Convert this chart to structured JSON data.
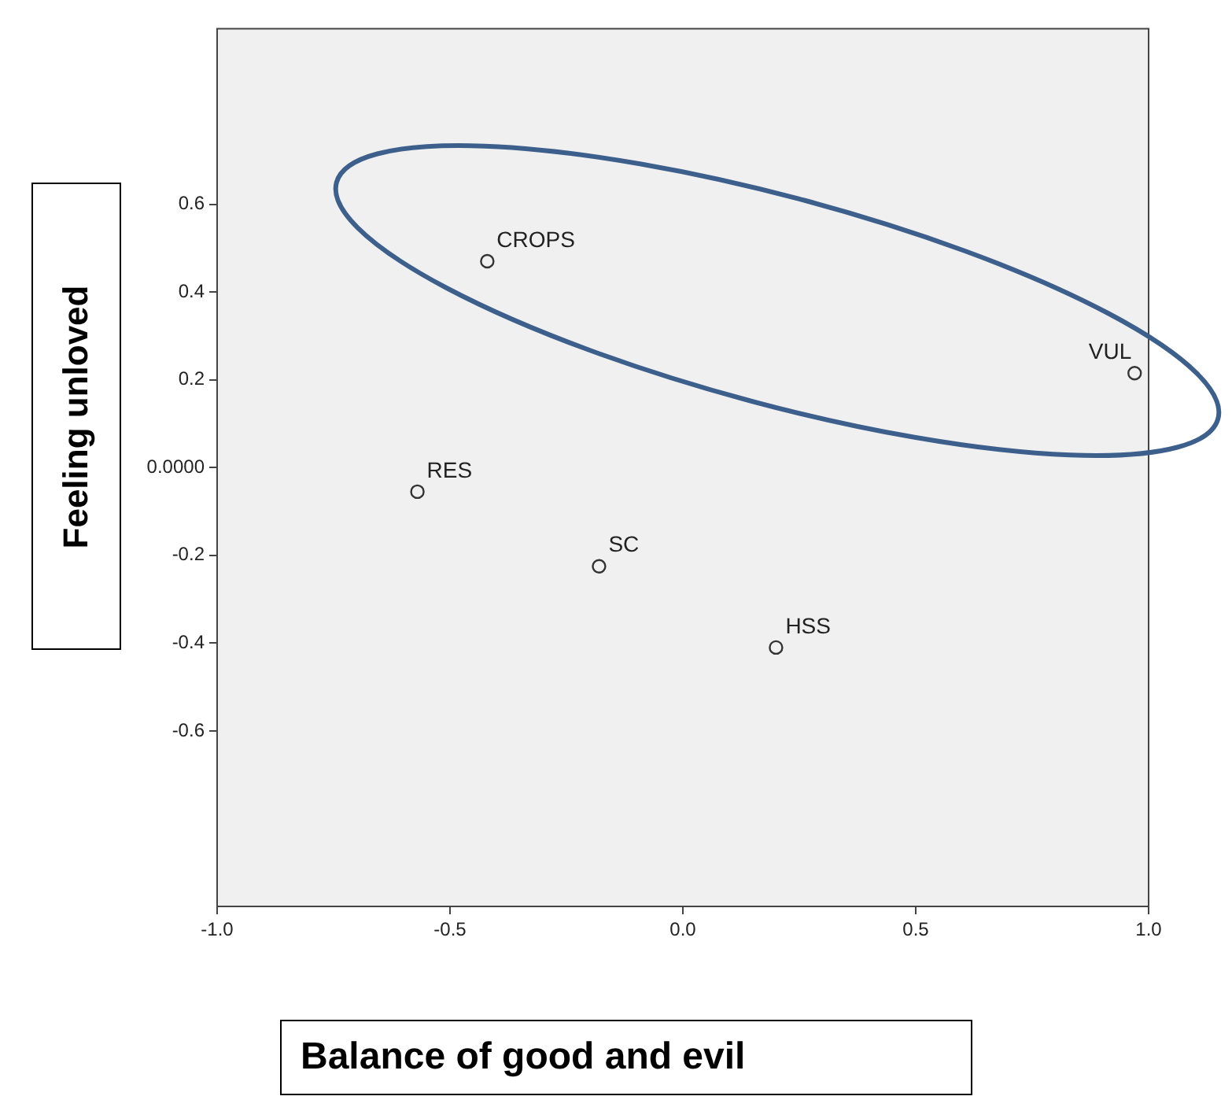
{
  "chart_data": {
    "type": "scatter",
    "xlabel": "Balance of good and evil",
    "ylabel": "Feeling unloved",
    "x": [
      -0.42,
      0.97,
      -0.57,
      -0.18,
      0.2
    ],
    "series": [
      {
        "color": "#333333",
        "values": [
          0.47,
          0.215,
          -0.055,
          -0.225,
          -0.41
        ]
      }
    ],
    "marker": "circle",
    "grid": false,
    "xlim": [
      -1,
      1
    ],
    "xticks": [
      {
        "value": -1,
        "label": "-1.0"
      },
      {
        "value": -0.5,
        "label": "-0.5"
      },
      {
        "value": 0,
        "label": "0.0"
      },
      {
        "value": 0.5,
        "label": "0.5"
      },
      {
        "value": 1,
        "label": "1.0"
      }
    ],
    "ylim": [
      -1,
      1
    ],
    "yticks": [
      0.6,
      0.4,
      0.2,
      {
        "value": 0,
        "label": "0.0000"
      },
      -0.2,
      -0.4,
      -0.6
    ],
    "annotations": [
      {
        "text": "CROPS",
        "x": -0.42,
        "y": 0.47
      },
      {
        "text": "VUL",
        "x": 0.97,
        "y": 0.215
      },
      {
        "text": "RES",
        "x": -0.57,
        "y": -0.055
      },
      {
        "text": "SC",
        "x": -0.18,
        "y": -0.225
      },
      {
        "text": "HSS",
        "x": 0.2,
        "y": -0.41
      }
    ]
  }
}
